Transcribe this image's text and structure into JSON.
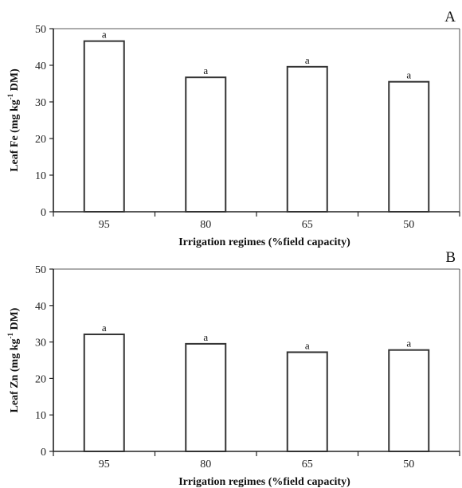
{
  "chart_data": [
    {
      "type": "bar",
      "panel_label": "A",
      "categories": [
        "95",
        "80",
        "65",
        "50"
      ],
      "values": [
        46.6,
        36.7,
        39.6,
        35.5
      ],
      "significance_labels": [
        "a",
        "a",
        "a",
        "a"
      ],
      "xlabel": "Irrigation regimes (%field capacity)",
      "ylabel": "Leaf Fe (mg kg",
      "ylabel_superscript": "-1",
      "ylabel_suffix": " DM)",
      "ylim": [
        0,
        50
      ],
      "yticks": [
        0,
        10,
        20,
        30,
        40,
        50
      ],
      "bar_fill": "#ffffff",
      "bar_stroke": "#333333"
    },
    {
      "type": "bar",
      "panel_label": "B",
      "categories": [
        "95",
        "80",
        "65",
        "50"
      ],
      "values": [
        32.1,
        29.5,
        27.2,
        27.8
      ],
      "significance_labels": [
        "a",
        "a",
        "a",
        "a"
      ],
      "xlabel": "Irrigation regimes (%field capacity)",
      "ylabel": "Leaf Zn (mg kg",
      "ylabel_superscript": "-1",
      "ylabel_suffix": " DM)",
      "ylim": [
        0,
        50
      ],
      "yticks": [
        0,
        10,
        20,
        30,
        40,
        50
      ],
      "bar_fill": "#ffffff",
      "bar_stroke": "#333333"
    }
  ]
}
